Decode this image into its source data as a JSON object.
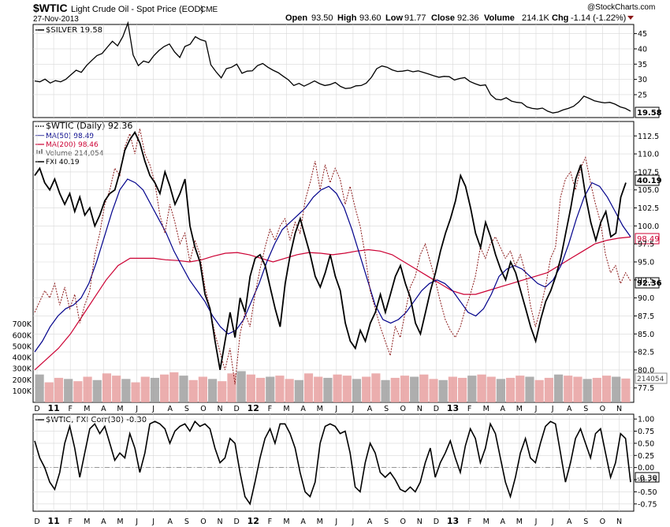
{
  "header": {
    "symbol": "$WTIC",
    "name": "Light Crude Oil - Spot Price (EOD)",
    "exchange": "CME",
    "date": "27-Nov-2013",
    "open_label": "Open",
    "open": "93.50",
    "high_label": "High",
    "high": "93.60",
    "low_label": "Low",
    "low": "91.77",
    "close_label": "Close",
    "close": "92.36",
    "volume_label": "Volume",
    "volume": "214.1K",
    "chg_label": "Chg",
    "chg": "-1.14 (-1.22%)",
    "brand": "@StockCharts.com"
  },
  "colors": {
    "wtic": "#8b1a1a",
    "fxi": "#000000",
    "ma50": "#00008b",
    "ma200": "#cc0033",
    "volume": "#e8a0a0",
    "volume_gray": "#a0a0a0",
    "grid": "#d8d8d8"
  },
  "chart_data": [
    {
      "type": "line",
      "panel": "top",
      "legend": [
        "$SILVER 19.58"
      ],
      "y_ticks": [
        "45",
        "40",
        "35",
        "30",
        "25"
      ],
      "last_value": "19.58",
      "ylim": [
        17.5,
        48
      ],
      "series": [
        {
          "name": "$SILVER",
          "values": [
            29.5,
            29.2,
            30.1,
            28.8,
            29.6,
            29.2,
            30.0,
            31.5,
            33.0,
            32.3,
            34.5,
            36.2,
            37.8,
            38.5,
            40.5,
            42.5,
            41.0,
            44.0,
            48.5,
            38.0,
            34.5,
            36.0,
            35.5,
            37.8,
            39.5,
            40.8,
            41.6,
            39.0,
            37.2,
            40.8,
            41.5,
            44.0,
            43.0,
            42.5,
            34.8,
            32.5,
            30.5,
            33.5,
            34.0,
            35.0,
            32.0,
            32.7,
            32.8,
            34.5,
            35.2,
            34.0,
            33.0,
            32.2,
            31.0,
            29.8,
            28.0,
            28.7,
            27.8,
            28.6,
            29.5,
            28.6,
            28.0,
            28.3,
            29.0,
            27.7,
            27.0,
            27.2,
            27.9,
            28.0,
            28.8,
            30.7,
            33.5,
            34.4,
            34.0,
            33.1,
            32.6,
            32.7,
            33.0,
            32.5,
            32.8,
            32.3,
            31.8,
            31.2,
            30.7,
            31.0,
            30.9,
            29.8,
            30.3,
            30.6,
            29.3,
            28.6,
            28.0,
            28.2,
            25.0,
            23.5,
            23.3,
            24.0,
            22.9,
            22.5,
            22.3,
            21.0,
            20.5,
            20.3,
            20.6,
            19.6,
            19.0,
            19.3,
            20.0,
            20.5,
            21.2,
            22.6,
            24.5,
            23.8,
            23.0,
            22.6,
            22.3,
            22.5,
            21.9,
            21.0,
            20.5,
            19.6
          ]
        }
      ]
    },
    {
      "type": "line",
      "panel": "main",
      "legend": [
        "$WTIC (Daily) 92.36",
        "MA(50) 98.49",
        "MA(200) 98.46",
        "Volume 214,054",
        "FXI 40.19"
      ],
      "y_ticks": [
        "112.5",
        "110.0",
        "107.5",
        "105.0",
        "102.5",
        "100.0",
        "97.5",
        "95.0",
        "92.5",
        "90.0",
        "87.5",
        "85.0",
        "82.5",
        "80.0",
        "77.5"
      ],
      "volume_ticks": [
        "700K",
        "600K",
        "500K",
        "400K",
        "300K",
        "200K",
        "100K"
      ],
      "value_labels": {
        "fxi": "40.19",
        "ma": "98.49",
        "wtic": "92.36",
        "volume": "214054"
      },
      "ylim": [
        75.5,
        114.5
      ],
      "volume_max": 850000,
      "series": [
        {
          "name": "$WTIC",
          "values": [
            88.0,
            89.5,
            91.0,
            90.0,
            92.0,
            89.0,
            91.5,
            88.5,
            90.5,
            86.5,
            89.0,
            91.0,
            96.0,
            99.0,
            103.0,
            105.0,
            108.0,
            107.0,
            111.0,
            112.8,
            110.0,
            113.5,
            110.0,
            108.5,
            106.0,
            101.5,
            99.0,
            103.0,
            100.5,
            97.5,
            99.0,
            95.0,
            98.0,
            96.0,
            91.5,
            88.5,
            85.0,
            82.5,
            80.0,
            83.0,
            78.0,
            85.0,
            88.0,
            86.0,
            90.5,
            94.0,
            97.0,
            99.5,
            98.0,
            100.0,
            101.0,
            98.0,
            100.5,
            99.0,
            103.5,
            106.0,
            109.0,
            105.0,
            108.5,
            106.0,
            108.0,
            106.5,
            103.0,
            105.5,
            102.5,
            100.0,
            96.0,
            91.0,
            88.5,
            86.0,
            84.0,
            82.0,
            86.0,
            84.5,
            88.0,
            91.5,
            93.0,
            96.0,
            97.5,
            95.0,
            92.5,
            89.5,
            87.0,
            85.5,
            84.5,
            86.0,
            88.5,
            90.5,
            93.0,
            97.0,
            95.5,
            97.5,
            98.5,
            97.0,
            95.5,
            96.5,
            94.5,
            96.0,
            93.5,
            89.0,
            86.0,
            88.5,
            91.5,
            95.5,
            97.0,
            104.0,
            106.5,
            107.5,
            105.0,
            108.0,
            109.5,
            106.0,
            103.0,
            100.5,
            96.0,
            93.5,
            94.5,
            92.0,
            93.5,
            92.36
          ]
        },
        {
          "name": "FXI",
          "values": [
            107.0,
            108.0,
            106.0,
            105.0,
            106.5,
            104.5,
            103.0,
            104.5,
            102.0,
            104.0,
            101.5,
            102.5,
            100.0,
            101.5,
            103.5,
            104.5,
            105.0,
            107.5,
            110.5,
            112.0,
            113.0,
            111.5,
            109.0,
            107.0,
            106.0,
            104.5,
            107.5,
            105.5,
            103.0,
            104.5,
            106.5,
            100.0,
            97.0,
            95.0,
            90.5,
            88.5,
            84.0,
            80.0,
            84.0,
            88.0,
            84.5,
            90.0,
            88.0,
            93.0,
            95.5,
            96.0,
            94.5,
            91.5,
            88.5,
            86.0,
            92.0,
            96.0,
            99.0,
            101.0,
            98.5,
            96.0,
            93.0,
            91.5,
            93.5,
            96.0,
            93.0,
            91.0,
            86.5,
            84.0,
            83.0,
            85.5,
            84.0,
            86.5,
            88.0,
            90.5,
            88.0,
            90.5,
            93.0,
            94.5,
            92.0,
            90.0,
            86.5,
            85.0,
            88.0,
            91.0,
            93.5,
            96.5,
            99.0,
            101.0,
            103.5,
            107.0,
            105.5,
            102.5,
            99.0,
            97.0,
            100.5,
            98.5,
            96.0,
            94.0,
            92.5,
            95.0,
            93.5,
            91.0,
            88.5,
            86.0,
            84.0,
            87.0,
            89.5,
            91.0,
            93.0,
            95.5,
            99.0,
            102.5,
            106.5,
            108.5,
            104.0,
            100.5,
            98.0,
            100.5,
            102.0,
            98.5,
            99.0,
            104.0,
            106.0,
            40.19
          ]
        },
        {
          "name": "MA(50)",
          "values": [
            82.5,
            84.0,
            86.0,
            87.5,
            88.5,
            89.0,
            90.0,
            92.0,
            95.0,
            98.5,
            102.0,
            105.0,
            106.5,
            106.0,
            105.0,
            103.0,
            101.0,
            99.0,
            96.5,
            94.5,
            92.5,
            91.0,
            89.5,
            87.5,
            86.0,
            85.0,
            85.5,
            87.0,
            89.5,
            92.0,
            95.0,
            97.5,
            99.5,
            100.5,
            101.5,
            102.5,
            104.0,
            105.0,
            105.5,
            104.5,
            102.5,
            99.5,
            96.0,
            92.5,
            89.0,
            87.0,
            86.5,
            87.0,
            88.0,
            89.5,
            91.0,
            92.0,
            92.5,
            92.0,
            91.0,
            89.5,
            88.0,
            87.5,
            88.5,
            90.5,
            93.0,
            94.0,
            94.5,
            94.0,
            93.0,
            92.0,
            91.5,
            92.5,
            94.5,
            97.5,
            101.0,
            104.0,
            106.0,
            105.5,
            104.0,
            102.0,
            100.0,
            98.5
          ]
        },
        {
          "name": "MA(200)",
          "values": [
            80.0,
            81.5,
            83.0,
            85.0,
            87.5,
            90.0,
            92.5,
            94.5,
            95.5,
            95.5,
            95.5,
            95.3,
            95.2,
            95.0,
            95.3,
            95.8,
            96.2,
            96.3,
            96.0,
            95.5,
            95.0,
            95.5,
            96.0,
            96.3,
            96.2,
            96.0,
            96.2,
            96.5,
            96.7,
            96.5,
            96.0,
            95.0,
            94.0,
            93.0,
            92.0,
            91.0,
            90.5,
            90.5,
            91.0,
            91.5,
            92.0,
            92.5,
            93.0,
            93.5,
            94.5,
            95.5,
            96.5,
            97.5,
            98.0,
            98.3,
            98.46
          ]
        },
        {
          "name": "Volume",
          "values": [
            250000,
            180000,
            220000,
            210000,
            190000,
            230000,
            200000,
            260000,
            240000,
            210000,
            180000,
            230000,
            220000,
            250000,
            270000,
            240000,
            200000,
            230000,
            210000,
            190000,
            260000,
            280000,
            250000,
            220000,
            230000,
            240000,
            210000,
            200000,
            260000,
            230000,
            220000,
            250000,
            240000,
            210000,
            230000,
            260000,
            200000,
            220000,
            240000,
            230000,
            250000,
            210000,
            200000,
            230000,
            220000,
            240000,
            250000,
            230000,
            210000,
            220000,
            240000,
            230000,
            200000,
            220000,
            250000,
            240000,
            230000,
            210000,
            220000,
            240000,
            230000,
            214054
          ]
        }
      ]
    },
    {
      "type": "line",
      "panel": "bottom",
      "legend": [
        "$WTIC, FXI Corr(30) -0.30"
      ],
      "y_ticks": [
        "1.00",
        "0.75",
        "0.50",
        "0.25",
        "0.00",
        "-0.25",
        "-0.50",
        "-0.75"
      ],
      "last_value": "-0.30",
      "ylim": [
        -0.9,
        1.1
      ],
      "series": [
        {
          "name": "Corr(30)",
          "values": [
            0.55,
            0.2,
            0.0,
            -0.3,
            -0.45,
            -0.1,
            0.5,
            0.85,
            0.4,
            -0.2,
            0.3,
            0.8,
            0.9,
            0.7,
            0.85,
            0.5,
            0.15,
            0.3,
            0.2,
            0.7,
            0.4,
            -0.1,
            0.3,
            0.9,
            0.95,
            0.9,
            0.8,
            0.5,
            0.75,
            0.85,
            0.9,
            0.75,
            0.95,
            0.85,
            0.9,
            0.8,
            0.4,
            0.1,
            0.2,
            0.6,
            0.5,
            -0.1,
            -0.6,
            -0.75,
            -0.3,
            0.2,
            0.6,
            0.8,
            0.5,
            0.9,
            0.9,
            0.7,
            0.4,
            -0.1,
            -0.5,
            -0.6,
            -0.3,
            0.5,
            0.85,
            0.9,
            0.85,
            0.7,
            0.75,
            0.3,
            -0.4,
            -0.5,
            0.1,
            0.5,
            0.3,
            -0.1,
            -0.2,
            -0.1,
            -0.25,
            -0.45,
            -0.5,
            -0.4,
            -0.5,
            -0.3,
            0.1,
            0.4,
            -0.2,
            0.1,
            0.3,
            0.55,
            0.2,
            -0.1,
            0.45,
            0.8,
            0.6,
            0.1,
            0.4,
            0.9,
            0.7,
            0.2,
            -0.3,
            -0.6,
            -0.2,
            0.3,
            0.6,
            0.2,
            0.1,
            0.5,
            0.85,
            0.95,
            0.9,
            0.3,
            -0.3,
            0.1,
            0.6,
            0.8,
            0.5,
            0.2,
            0.7,
            0.8,
            0.3,
            -0.2,
            0.1,
            0.7,
            0.6,
            -0.3
          ]
        }
      ]
    }
  ],
  "x_axis": {
    "labels": [
      "D",
      "11",
      "F",
      "M",
      "A",
      "M",
      "J",
      "J",
      "A",
      "S",
      "O",
      "N",
      "D",
      "12",
      "F",
      "M",
      "A",
      "M",
      "J",
      "J",
      "A",
      "S",
      "O",
      "N",
      "D",
      "13",
      "F",
      "M",
      "A",
      "M",
      "J",
      "J",
      "A",
      "S",
      "O",
      "N"
    ],
    "bold": [
      "11",
      "12",
      "13"
    ]
  }
}
